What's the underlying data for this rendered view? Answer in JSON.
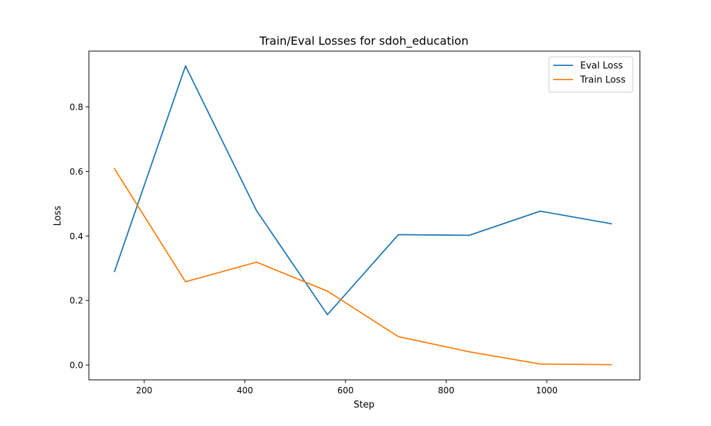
{
  "chart_data": {
    "type": "line",
    "title": "Train/Eval Losses for sdoh_education",
    "xlabel": "Step",
    "ylabel": "Loss",
    "xlim": [
      90,
      1185
    ],
    "ylim": [
      -0.046,
      0.973
    ],
    "xticks": [
      200,
      400,
      600,
      800,
      1000
    ],
    "yticks": [
      0.0,
      0.2,
      0.4,
      0.6,
      0.8
    ],
    "grid": false,
    "legend_position": "top-right",
    "series": [
      {
        "name": "Eval Loss",
        "color": "#1f77b4",
        "x": [
          141,
          282,
          423,
          564,
          705,
          846,
          987,
          1128
        ],
        "y": [
          0.29,
          0.927,
          0.479,
          0.156,
          0.404,
          0.402,
          0.477,
          0.438
        ]
      },
      {
        "name": "Train Loss",
        "color": "#ff7f0e",
        "x": [
          141,
          282,
          423,
          564,
          705,
          846,
          987,
          1128
        ],
        "y": [
          0.608,
          0.258,
          0.319,
          0.229,
          0.088,
          0.041,
          0.003,
          0.001
        ]
      }
    ]
  }
}
